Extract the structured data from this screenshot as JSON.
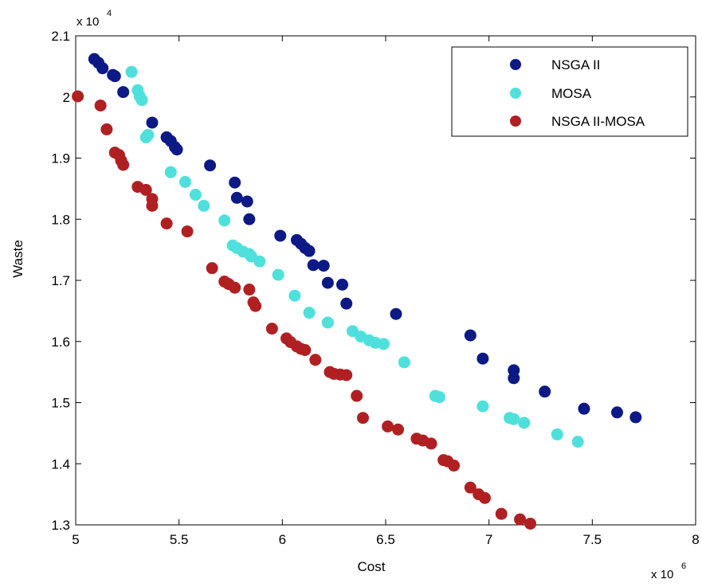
{
  "chart_data": {
    "type": "scatter",
    "xlabel": "Cost",
    "ylabel": "Waste",
    "x_exponent_label": "x 10",
    "x_exponent_power": "6",
    "y_exponent_label": "x 10",
    "y_exponent_power": "4",
    "xlim": [
      5,
      8
    ],
    "ylim": [
      1.3,
      2.1
    ],
    "x_ticks": [
      5,
      5.5,
      6,
      6.5,
      7,
      7.5,
      8
    ],
    "x_tick_labels": [
      "5",
      "5.5",
      "6",
      "6.5",
      "7",
      "7.5",
      "8"
    ],
    "y_ticks": [
      1.3,
      1.4,
      1.5,
      1.6,
      1.7,
      1.8,
      1.9,
      2.0,
      2.1
    ],
    "y_tick_labels": [
      "1.3",
      "1.4",
      "1.5",
      "1.6",
      "1.7",
      "1.8",
      "1.9",
      "2",
      "2.1"
    ],
    "grid": false,
    "legend_position": "top-right",
    "series": [
      {
        "name": "NSGA II",
        "color": "#0d1a85",
        "points": [
          [
            5.09,
            2.062
          ],
          [
            5.11,
            2.056
          ],
          [
            5.13,
            2.047
          ],
          [
            5.18,
            2.036
          ],
          [
            5.19,
            2.034
          ],
          [
            5.23,
            2.008
          ],
          [
            5.37,
            1.958
          ],
          [
            5.44,
            1.934
          ],
          [
            5.46,
            1.928
          ],
          [
            5.48,
            1.918
          ],
          [
            5.49,
            1.914
          ],
          [
            5.65,
            1.888
          ],
          [
            5.77,
            1.86
          ],
          [
            5.78,
            1.835
          ],
          [
            5.83,
            1.829
          ],
          [
            5.84,
            1.8
          ],
          [
            5.99,
            1.773
          ],
          [
            6.07,
            1.766
          ],
          [
            6.09,
            1.76
          ],
          [
            6.11,
            1.753
          ],
          [
            6.13,
            1.748
          ],
          [
            6.15,
            1.725
          ],
          [
            6.2,
            1.724
          ],
          [
            6.22,
            1.696
          ],
          [
            6.29,
            1.693
          ],
          [
            6.31,
            1.662
          ],
          [
            6.55,
            1.645
          ],
          [
            6.91,
            1.61
          ],
          [
            6.97,
            1.572
          ],
          [
            7.12,
            1.553
          ],
          [
            7.12,
            1.54
          ],
          [
            7.27,
            1.518
          ],
          [
            7.46,
            1.49
          ],
          [
            7.62,
            1.484
          ],
          [
            7.71,
            1.476
          ]
        ]
      },
      {
        "name": "MOSA",
        "color": "#4fe0dc",
        "points": [
          [
            5.27,
            2.041
          ],
          [
            5.3,
            2.011
          ],
          [
            5.31,
            2.001
          ],
          [
            5.32,
            1.995
          ],
          [
            5.34,
            1.934
          ],
          [
            5.35,
            1.938
          ],
          [
            5.46,
            1.877
          ],
          [
            5.53,
            1.861
          ],
          [
            5.58,
            1.84
          ],
          [
            5.62,
            1.822
          ],
          [
            5.72,
            1.798
          ],
          [
            5.76,
            1.757
          ],
          [
            5.78,
            1.753
          ],
          [
            5.81,
            1.747
          ],
          [
            5.84,
            1.743
          ],
          [
            5.85,
            1.739
          ],
          [
            5.89,
            1.731
          ],
          [
            5.98,
            1.709
          ],
          [
            6.06,
            1.675
          ],
          [
            6.13,
            1.647
          ],
          [
            6.22,
            1.631
          ],
          [
            6.34,
            1.617
          ],
          [
            6.38,
            1.608
          ],
          [
            6.42,
            1.602
          ],
          [
            6.45,
            1.598
          ],
          [
            6.49,
            1.596
          ],
          [
            6.59,
            1.566
          ],
          [
            6.74,
            1.511
          ],
          [
            6.76,
            1.509
          ],
          [
            6.97,
            1.494
          ],
          [
            7.1,
            1.475
          ],
          [
            7.12,
            1.473
          ],
          [
            7.17,
            1.467
          ],
          [
            7.33,
            1.448
          ],
          [
            7.43,
            1.436
          ]
        ]
      },
      {
        "name": "NSGA II-MOSA",
        "color": "#b02022",
        "points": [
          [
            5.01,
            2.001
          ],
          [
            5.12,
            1.986
          ],
          [
            5.15,
            1.947
          ],
          [
            5.19,
            1.909
          ],
          [
            5.21,
            1.905
          ],
          [
            5.22,
            1.896
          ],
          [
            5.23,
            1.889
          ],
          [
            5.3,
            1.853
          ],
          [
            5.34,
            1.848
          ],
          [
            5.37,
            1.833
          ],
          [
            5.37,
            1.822
          ],
          [
            5.44,
            1.793
          ],
          [
            5.54,
            1.78
          ],
          [
            5.66,
            1.72
          ],
          [
            5.72,
            1.698
          ],
          [
            5.74,
            1.694
          ],
          [
            5.77,
            1.688
          ],
          [
            5.84,
            1.685
          ],
          [
            5.86,
            1.664
          ],
          [
            5.87,
            1.658
          ],
          [
            5.95,
            1.621
          ],
          [
            6.02,
            1.605
          ],
          [
            6.04,
            1.599
          ],
          [
            6.07,
            1.592
          ],
          [
            6.09,
            1.588
          ],
          [
            6.11,
            1.586
          ],
          [
            6.16,
            1.57
          ],
          [
            6.23,
            1.55
          ],
          [
            6.25,
            1.547
          ],
          [
            6.28,
            1.546
          ],
          [
            6.31,
            1.545
          ],
          [
            6.36,
            1.511
          ],
          [
            6.39,
            1.475
          ],
          [
            6.51,
            1.461
          ],
          [
            6.56,
            1.456
          ],
          [
            6.65,
            1.441
          ],
          [
            6.68,
            1.438
          ],
          [
            6.72,
            1.433
          ],
          [
            6.78,
            1.406
          ],
          [
            6.8,
            1.404
          ],
          [
            6.83,
            1.397
          ],
          [
            6.91,
            1.361
          ],
          [
            6.95,
            1.35
          ],
          [
            6.98,
            1.344
          ],
          [
            7.06,
            1.318
          ],
          [
            7.15,
            1.309
          ],
          [
            7.2,
            1.302
          ]
        ]
      }
    ]
  }
}
